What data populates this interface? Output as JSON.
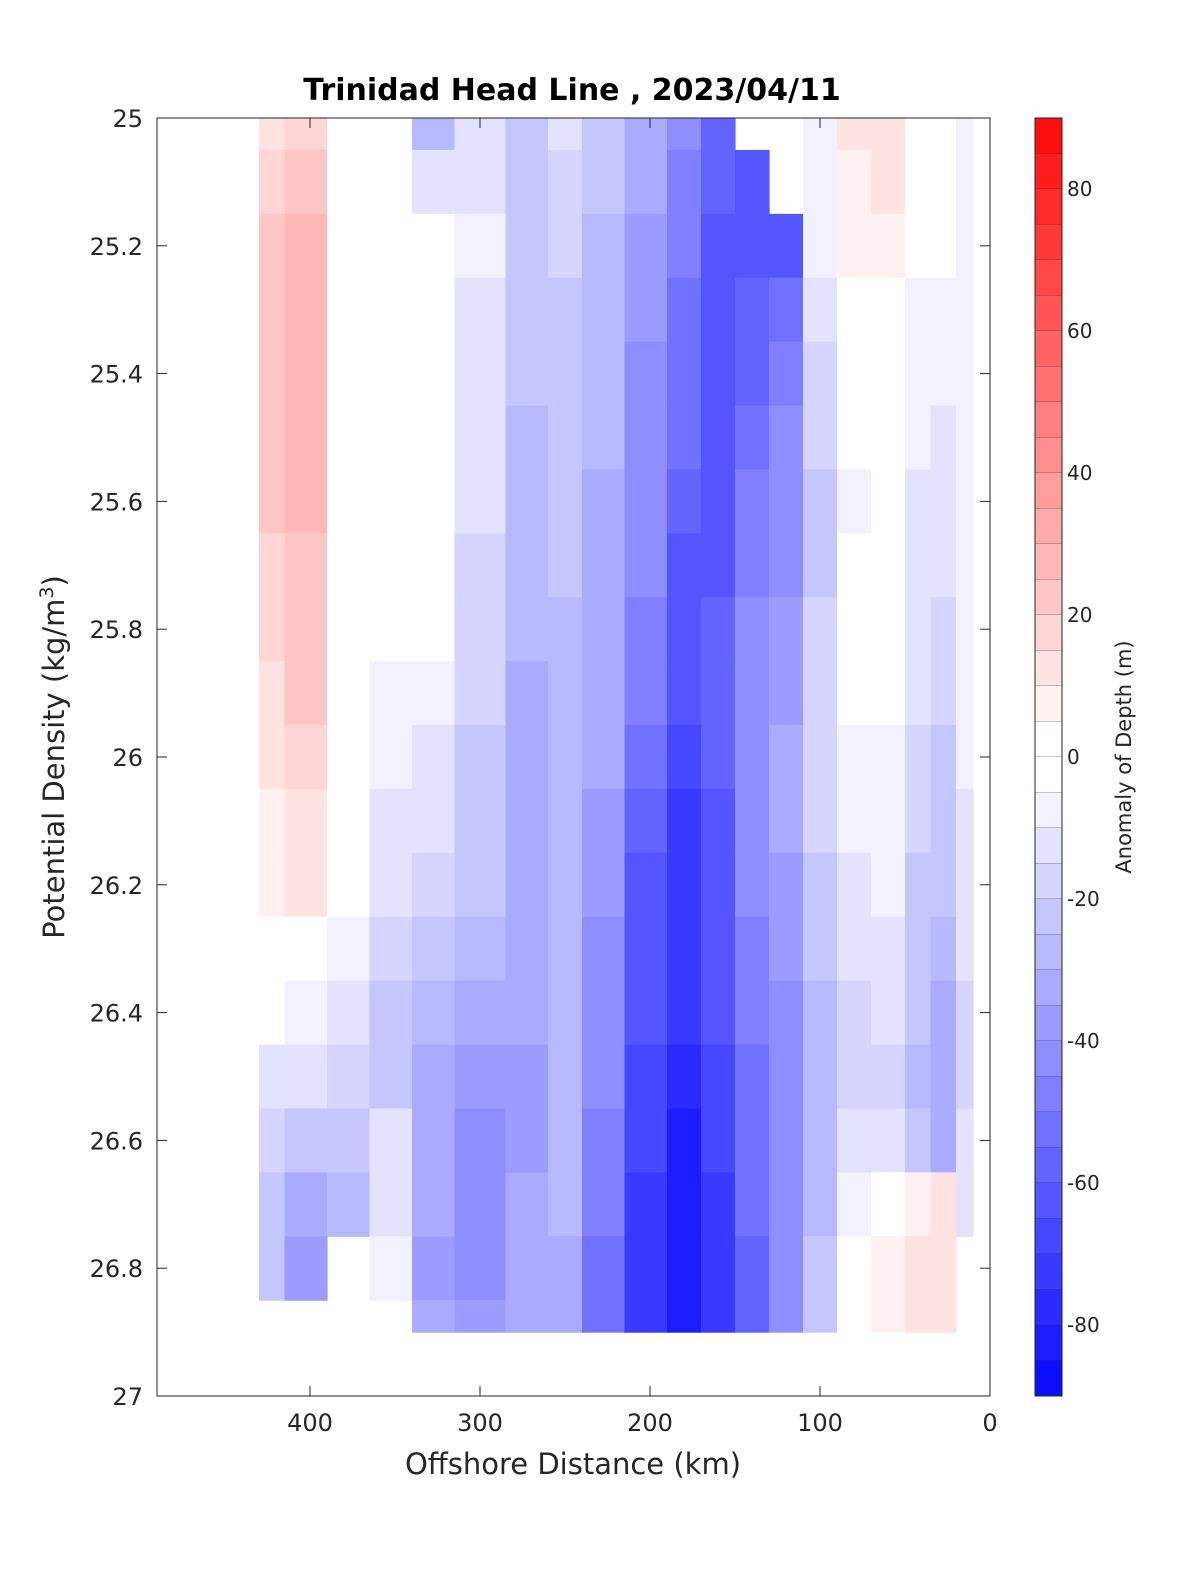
{
  "chart_data": {
    "type": "heatmap",
    "title": "Trinidad Head Line , 2023/04/11",
    "xlabel": "Offshore Distance (km)",
    "ylabel": "Potential Density (kg/m3)",
    "ylabel_parts": {
      "main": "Potential Density (kg/m",
      "sup": "3",
      "close": ")"
    },
    "x_axis": {
      "range": [
        490,
        0
      ],
      "reversed": true,
      "ticks": [
        400,
        300,
        200,
        100,
        0
      ],
      "tick_labels": [
        "400",
        "300",
        "200",
        "100",
        "0"
      ]
    },
    "y_axis": {
      "range": [
        25,
        27
      ],
      "reversed": true,
      "ticks": [
        25,
        25.2,
        25.4,
        25.6,
        25.8,
        26,
        26.2,
        26.4,
        26.6,
        26.8,
        27
      ],
      "tick_labels": [
        "25",
        "25.2",
        "25.4",
        "25.6",
        "25.8",
        "26",
        "26.2",
        "26.4",
        "26.6",
        "26.8",
        "27"
      ]
    },
    "colorbar": {
      "label": "Anomaly of Depth (m)",
      "range": [
        -90,
        90
      ],
      "step": 5,
      "ticks": [
        80,
        60,
        40,
        20,
        0,
        -20,
        -40,
        -60,
        -80
      ],
      "tick_labels": [
        "80",
        "60",
        "40",
        "20",
        "0",
        "-20",
        "-40",
        "-60",
        "-80"
      ],
      "colormap": {
        "negative": "#0000ff",
        "zero": "#ffffff",
        "positive": "#ff0000"
      }
    },
    "grid": false,
    "stations_km": [
      430,
      400,
      380,
      350,
      330,
      300,
      270,
      250,
      230,
      200,
      180,
      160,
      140,
      120,
      100,
      80,
      60,
      40,
      30,
      10
    ],
    "density_levels": [
      25,
      25.1,
      25.2,
      25.3,
      25.4,
      25.5,
      25.6,
      25.7,
      25.8,
      25.9,
      26,
      26.1,
      26.2,
      26.3,
      26.4,
      26.5,
      26.6,
      26.7,
      26.8,
      26.9
    ],
    "anomaly_m": [
      [
        14,
        16,
        2,
        -4,
        -28,
        -14,
        -20,
        -14,
        -22,
        -32,
        -40,
        -56,
        null,
        null,
        -8,
        10,
        12,
        -3,
        -3,
        -5
      ],
      [
        18,
        22,
        2,
        -2,
        -14,
        -10,
        -20,
        -18,
        -24,
        -34,
        -45,
        -58,
        -62,
        null,
        -6,
        8,
        12,
        -3,
        -4,
        -5
      ],
      [
        20,
        26,
        1,
        -1,
        -3,
        -8,
        -21,
        -18,
        -25,
        -36,
        -48,
        -60,
        -63,
        -60,
        -8,
        5,
        8,
        -3,
        -4,
        -5
      ],
      [
        20,
        28,
        1,
        -2,
        -2,
        -10,
        -22,
        -20,
        -26,
        -38,
        -50,
        -60,
        -58,
        -52,
        -12,
        0,
        4,
        -6,
        -6,
        -5
      ],
      [
        22,
        28,
        1,
        -1,
        -2,
        -12,
        -24,
        -22,
        -28,
        -40,
        -52,
        -62,
        -56,
        -48,
        -16,
        -2,
        0,
        -6,
        -8,
        -6
      ],
      [
        20,
        27,
        1,
        -2,
        -3,
        -12,
        -26,
        -22,
        -28,
        -40,
        -54,
        -62,
        -50,
        -44,
        -18,
        -4,
        -2,
        -8,
        -10,
        -6
      ],
      [
        20,
        25,
        0,
        -2,
        -3,
        -14,
        -28,
        -24,
        -30,
        -42,
        -56,
        -60,
        -48,
        -42,
        -20,
        -6,
        -4,
        -10,
        -12,
        -6
      ],
      [
        18,
        24,
        0,
        -3,
        -3,
        -15,
        -28,
        -24,
        -32,
        -44,
        -60,
        -60,
        -46,
        -40,
        -20,
        -4,
        -2,
        -10,
        -14,
        -6
      ],
      [
        16,
        22,
        -1,
        -4,
        -4,
        -16,
        -29,
        -25,
        -32,
        -46,
        -62,
        -58,
        -44,
        -38,
        -18,
        -3,
        -2,
        -12,
        -16,
        -6
      ],
      [
        14,
        20,
        -2,
        -5,
        -6,
        -18,
        -30,
        -25,
        -32,
        -48,
        -64,
        -58,
        -42,
        -36,
        -18,
        -4,
        -3,
        -14,
        -18,
        -6
      ],
      [
        10,
        18,
        -3,
        -8,
        -10,
        -20,
        -30,
        -26,
        -34,
        -52,
        -66,
        -58,
        -42,
        -34,
        -18,
        -6,
        -5,
        -16,
        -20,
        -8
      ],
      [
        8,
        14,
        -3,
        -10,
        -14,
        -22,
        -30,
        -26,
        -36,
        -56,
        -70,
        -60,
        -42,
        -34,
        -18,
        -8,
        -6,
        -18,
        -22,
        -10
      ],
      [
        5,
        10,
        -3,
        -12,
        -18,
        -24,
        -30,
        -26,
        -38,
        -60,
        -72,
        -62,
        -44,
        -36,
        -20,
        -10,
        -8,
        -20,
        -24,
        -12
      ],
      [
        2,
        4,
        -6,
        -16,
        -22,
        -26,
        -32,
        -28,
        -40,
        -62,
        -72,
        -62,
        -46,
        -38,
        -22,
        -14,
        -12,
        -22,
        -28,
        -14
      ],
      [
        -4,
        -6,
        -12,
        -20,
        -28,
        -30,
        -34,
        -28,
        -42,
        -64,
        -72,
        -64,
        -48,
        -40,
        -26,
        -16,
        -14,
        -24,
        -32,
        -16
      ],
      [
        -10,
        -14,
        -18,
        -24,
        -32,
        -36,
        -36,
        -28,
        -44,
        -66,
        -76,
        -66,
        -50,
        -42,
        -28,
        -18,
        -16,
        -26,
        -34,
        -16
      ],
      [
        -18,
        -22,
        -24,
        -14,
        -30,
        -40,
        -36,
        -26,
        -46,
        -68,
        -80,
        -68,
        -52,
        -44,
        -28,
        -14,
        -10,
        -20,
        -30,
        -14
      ],
      [
        -24,
        -32,
        -26,
        -10,
        -34,
        -40,
        -34,
        -28,
        -48,
        -70,
        -80,
        -70,
        -54,
        -44,
        -26,
        -8,
        0,
        8,
        10,
        -10
      ],
      [
        -20,
        -38,
        null,
        -8,
        -36,
        -40,
        -34,
        -30,
        -50,
        -72,
        -80,
        -70,
        -56,
        -44,
        -24,
        -2,
        6,
        12,
        10,
        null
      ],
      [
        null,
        null,
        null,
        null,
        -30,
        -36,
        -30,
        -30,
        -52,
        -74,
        -82,
        -70,
        -58,
        -44,
        -20,
        0,
        8,
        14,
        12,
        null
      ]
    ]
  }
}
